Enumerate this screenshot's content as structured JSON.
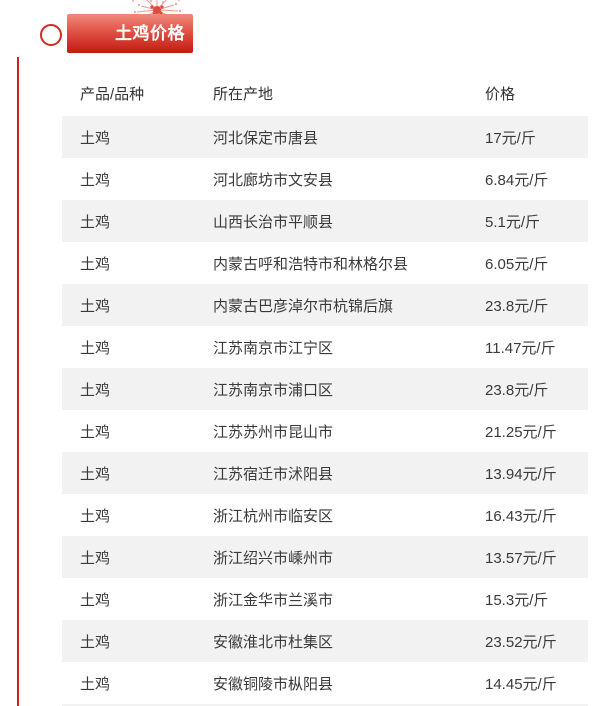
{
  "header": {
    "badge_label": "土鸡价格"
  },
  "icons": {
    "firework_icon": "firework-burst",
    "circle_icon": "circle-outline"
  },
  "colors": {
    "accent_red": "#cb2418",
    "badge_gradient_top": "#f0897e",
    "badge_gradient_bottom": "#c21a10",
    "ring_red": "#d22c1e",
    "row_stripe": "#f2f2f2",
    "text": "#3a3a3a",
    "badge_text": "#ffffff"
  },
  "table": {
    "columns": [
      "产品/品种",
      "所在产地",
      "价格"
    ],
    "rows": [
      {
        "product": "土鸡",
        "origin": "河北保定市唐县",
        "price": "17元/斤"
      },
      {
        "product": "土鸡",
        "origin": "河北廊坊市文安县",
        "price": "6.84元/斤"
      },
      {
        "product": "土鸡",
        "origin": "山西长治市平顺县",
        "price": "5.1元/斤"
      },
      {
        "product": "土鸡",
        "origin": "内蒙古呼和浩特市和林格尔县",
        "price": "6.05元/斤"
      },
      {
        "product": "土鸡",
        "origin": "内蒙古巴彦淖尔市杭锦后旗",
        "price": "23.8元/斤"
      },
      {
        "product": "土鸡",
        "origin": "江苏南京市江宁区",
        "price": "11.47元/斤"
      },
      {
        "product": "土鸡",
        "origin": "江苏南京市浦口区",
        "price": "23.8元/斤"
      },
      {
        "product": "土鸡",
        "origin": "江苏苏州市昆山市",
        "price": "21.25元/斤"
      },
      {
        "product": "土鸡",
        "origin": "江苏宿迁市沭阳县",
        "price": "13.94元/斤"
      },
      {
        "product": "土鸡",
        "origin": "浙江杭州市临安区",
        "price": "16.43元/斤"
      },
      {
        "product": "土鸡",
        "origin": "浙江绍兴市嵊州市",
        "price": "13.57元/斤"
      },
      {
        "product": "土鸡",
        "origin": "浙江金华市兰溪市",
        "price": "15.3元/斤"
      },
      {
        "product": "土鸡",
        "origin": "安徽淮北市杜集区",
        "price": "23.52元/斤"
      },
      {
        "product": "土鸡",
        "origin": "安徽铜陵市枞阳县",
        "price": "14.45元/斤"
      }
    ]
  }
}
